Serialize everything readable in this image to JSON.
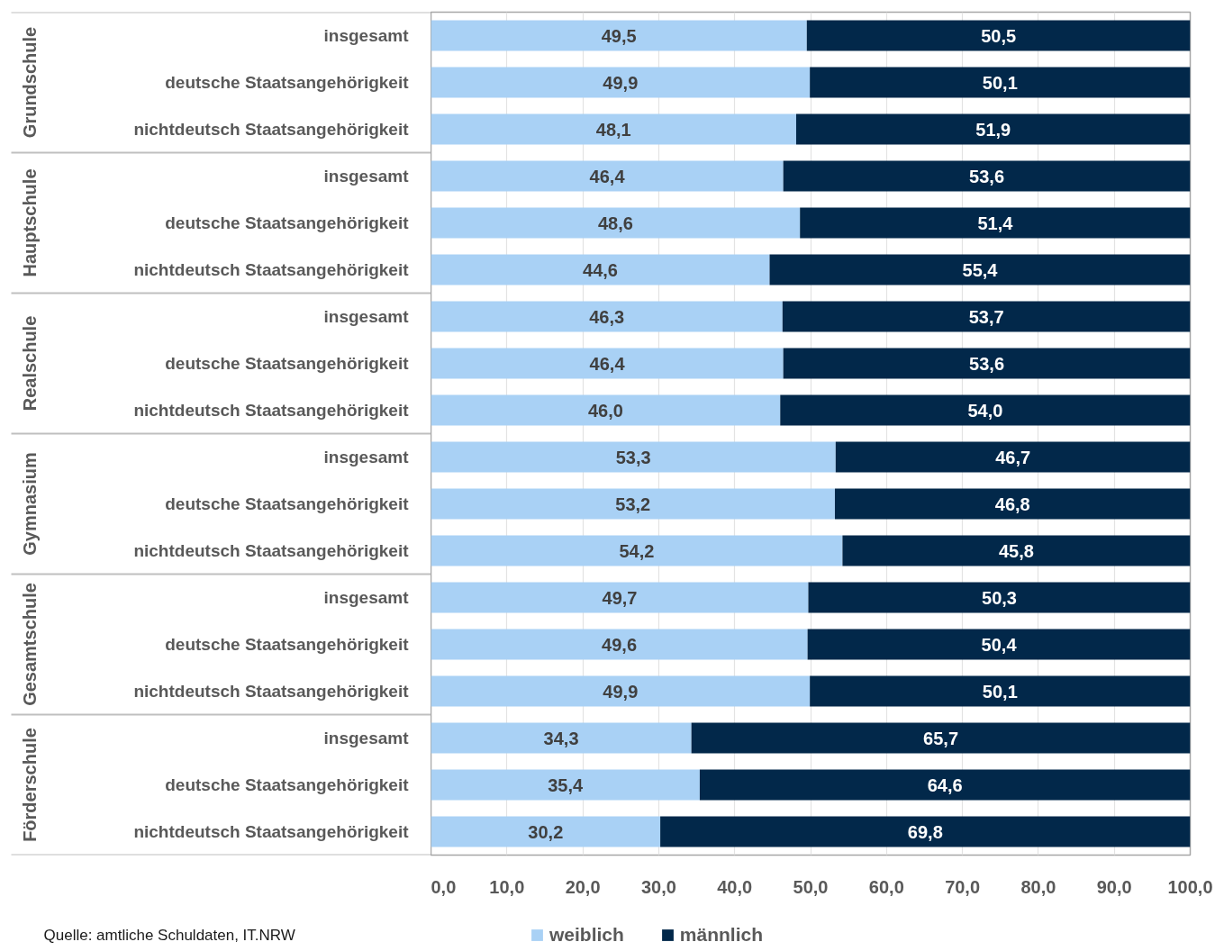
{
  "chart_data": {
    "type": "bar",
    "orientation": "horizontal",
    "stacked": true,
    "categories": [
      "insgesamt",
      "deutsche Staatsangehörigkeit",
      "nichtdeutsch Staatsangehörigkeit",
      "insgesamt",
      "deutsche Staatsangehörigkeit",
      "nichtdeutsch Staatsangehörigkeit",
      "insgesamt",
      "deutsche Staatsangehörigkeit",
      "nichtdeutsch Staatsangehörigkeit",
      "insgesamt",
      "deutsche Staatsangehörigkeit",
      "nichtdeutsch Staatsangehörigkeit",
      "insgesamt",
      "deutsche Staatsangehörigkeit",
      "nichtdeutsch Staatsangehörigkeit",
      "insgesamt",
      "deutsche Staatsangehörigkeit",
      "nichtdeutsch Staatsangehörigkeit"
    ],
    "series": [
      {
        "name": "weiblich",
        "color": "#a9d1f5",
        "values": [
          49.5,
          49.9,
          48.1,
          46.4,
          48.6,
          44.6,
          46.3,
          46.4,
          46.0,
          53.3,
          53.2,
          54.2,
          49.7,
          49.6,
          49.9,
          34.3,
          35.4,
          30.2
        ],
        "value_labels": [
          "49,5",
          "49,9",
          "48,1",
          "46,4",
          "48,6",
          "44,6",
          "46,3",
          "46,4",
          "46,0",
          "53,3",
          "53,2",
          "54,2",
          "49,7",
          "49,6",
          "49,9",
          "34,3",
          "35,4",
          "30,2"
        ]
      },
      {
        "name": "männlich",
        "color": "#02284a",
        "values": [
          50.5,
          50.1,
          51.9,
          53.6,
          51.4,
          55.4,
          53.7,
          53.6,
          54.0,
          46.7,
          46.8,
          45.8,
          50.3,
          50.4,
          50.1,
          65.7,
          64.6,
          69.8
        ],
        "value_labels": [
          "50,5",
          "50,1",
          "51,9",
          "53,6",
          "51,4",
          "55,4",
          "53,7",
          "53,6",
          "54,0",
          "46,7",
          "46,8",
          "45,8",
          "50,3",
          "50,4",
          "50,1",
          "65,7",
          "64,6",
          "69,8"
        ]
      }
    ],
    "xlim": [
      0,
      100
    ],
    "xticks": [
      {
        "value": 0,
        "label": "0,0"
      },
      {
        "value": 10,
        "label": "10,0"
      },
      {
        "value": 20,
        "label": "20,0"
      },
      {
        "value": 30,
        "label": "30,0"
      },
      {
        "value": 40,
        "label": "40,0"
      },
      {
        "value": 50,
        "label": "50,0"
      },
      {
        "value": 60,
        "label": "60,0"
      },
      {
        "value": 70,
        "label": "70,0"
      },
      {
        "value": 80,
        "label": "80,0"
      },
      {
        "value": 90,
        "label": "90,0"
      },
      {
        "value": 100,
        "label": "100,0"
      }
    ],
    "grid": "x",
    "legend": "bottom",
    "annotations": [
      "Grundschule",
      "Hauptschule",
      "Realschule",
      "Gymnasium",
      "Gesamtschule",
      "Förderschule",
      "Quelle: amtliche Schuldaten, IT.NRW"
    ]
  }
}
